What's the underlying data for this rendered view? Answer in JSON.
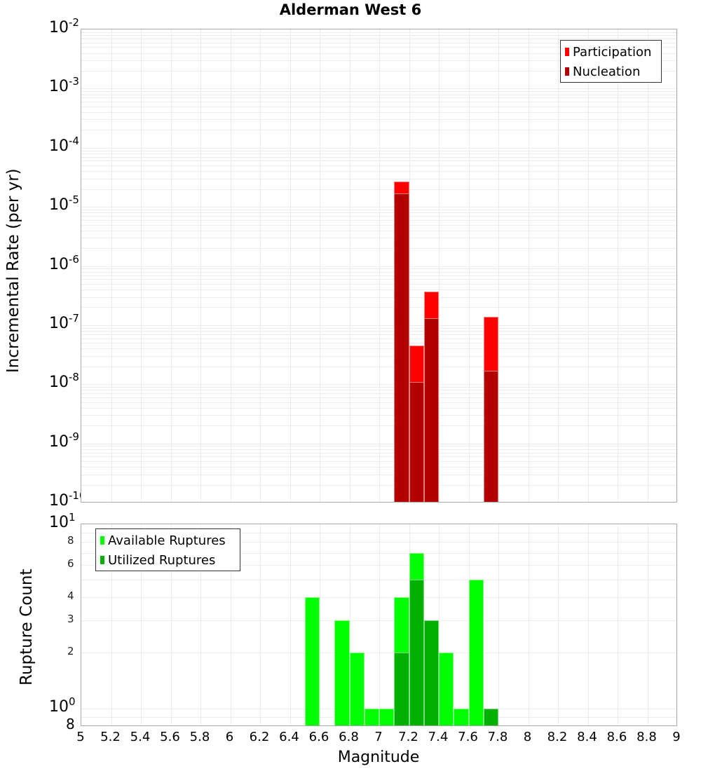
{
  "title": "Alderman West 6",
  "top_plot": {
    "ylabel": "Incremental Rate (per yr)",
    "y_ticks": [
      {
        "base": "10",
        "exp": "-2"
      },
      {
        "base": "10",
        "exp": "-3"
      },
      {
        "base": "10",
        "exp": "-4"
      },
      {
        "base": "10",
        "exp": "-5"
      },
      {
        "base": "10",
        "exp": "-6"
      },
      {
        "base": "10",
        "exp": "-7"
      },
      {
        "base": "10",
        "exp": "-8"
      },
      {
        "base": "10",
        "exp": "-9"
      },
      {
        "base": "10",
        "exp": "-10"
      }
    ],
    "legend": [
      {
        "label": "Participation",
        "color": "#ff0000"
      },
      {
        "label": "Nucleation",
        "color": "#b30000"
      }
    ]
  },
  "bottom_plot": {
    "ylabel": "Rupture Count",
    "y_major_ticks": [
      {
        "base": "10",
        "exp": "1"
      },
      {
        "base": "10",
        "exp": "0"
      }
    ],
    "y_minor_ticks": [
      "8",
      "6",
      "4",
      "3",
      "2"
    ],
    "y_bottom_tick": "8",
    "legend": [
      {
        "label": "Available Ruptures",
        "color": "#00ff00"
      },
      {
        "label": "Utilized Ruptures",
        "color": "#00b000"
      }
    ]
  },
  "x_axis": {
    "label": "Magnitude",
    "ticks": [
      "5",
      "5.2",
      "5.4",
      "5.6",
      "5.8",
      "6",
      "6.2",
      "6.4",
      "6.6",
      "6.8",
      "7",
      "7.2",
      "7.4",
      "7.6",
      "7.8",
      "8",
      "8.2",
      "8.4",
      "8.6",
      "8.8",
      "9"
    ]
  },
  "chart_data": [
    {
      "type": "bar",
      "title": "Alderman West 6",
      "xlabel": "Magnitude",
      "ylabel": "Incremental Rate (per yr)",
      "yscale": "log",
      "xlim": [
        5,
        9
      ],
      "ylim": [
        1e-10,
        0.01
      ],
      "grid": true,
      "legend_position": "upper right",
      "bin_width": 0.1,
      "x": [
        7.15,
        7.25,
        7.35,
        7.75
      ],
      "series": [
        {
          "name": "Participation",
          "color": "#ff0000",
          "values": [
            2.7e-05,
            4.5e-08,
            3.7e-07,
            1.4e-07
          ]
        },
        {
          "name": "Nucleation",
          "color": "#b30000",
          "values": [
            1.7e-05,
            1.1e-08,
            1.3e-07,
            1.7e-08
          ]
        }
      ]
    },
    {
      "type": "bar",
      "title": "",
      "xlabel": "Magnitude",
      "ylabel": "Rupture Count",
      "yscale": "log",
      "xlim": [
        5,
        9
      ],
      "ylim": [
        0.8,
        10
      ],
      "grid": true,
      "legend_position": "upper left",
      "bin_width": 0.1,
      "x": [
        6.55,
        6.75,
        6.85,
        6.95,
        7.05,
        7.15,
        7.25,
        7.35,
        7.45,
        7.55,
        7.65,
        7.75
      ],
      "series": [
        {
          "name": "Available Ruptures",
          "color": "#00ff00",
          "values": [
            4,
            3,
            2,
            1,
            1,
            4,
            7,
            3,
            2,
            1,
            5,
            1
          ]
        },
        {
          "name": "Utilized Ruptures",
          "color": "#00b000",
          "values": [
            0,
            0,
            0,
            0,
            0,
            2,
            5,
            3,
            0,
            0,
            0,
            1
          ]
        }
      ]
    }
  ]
}
